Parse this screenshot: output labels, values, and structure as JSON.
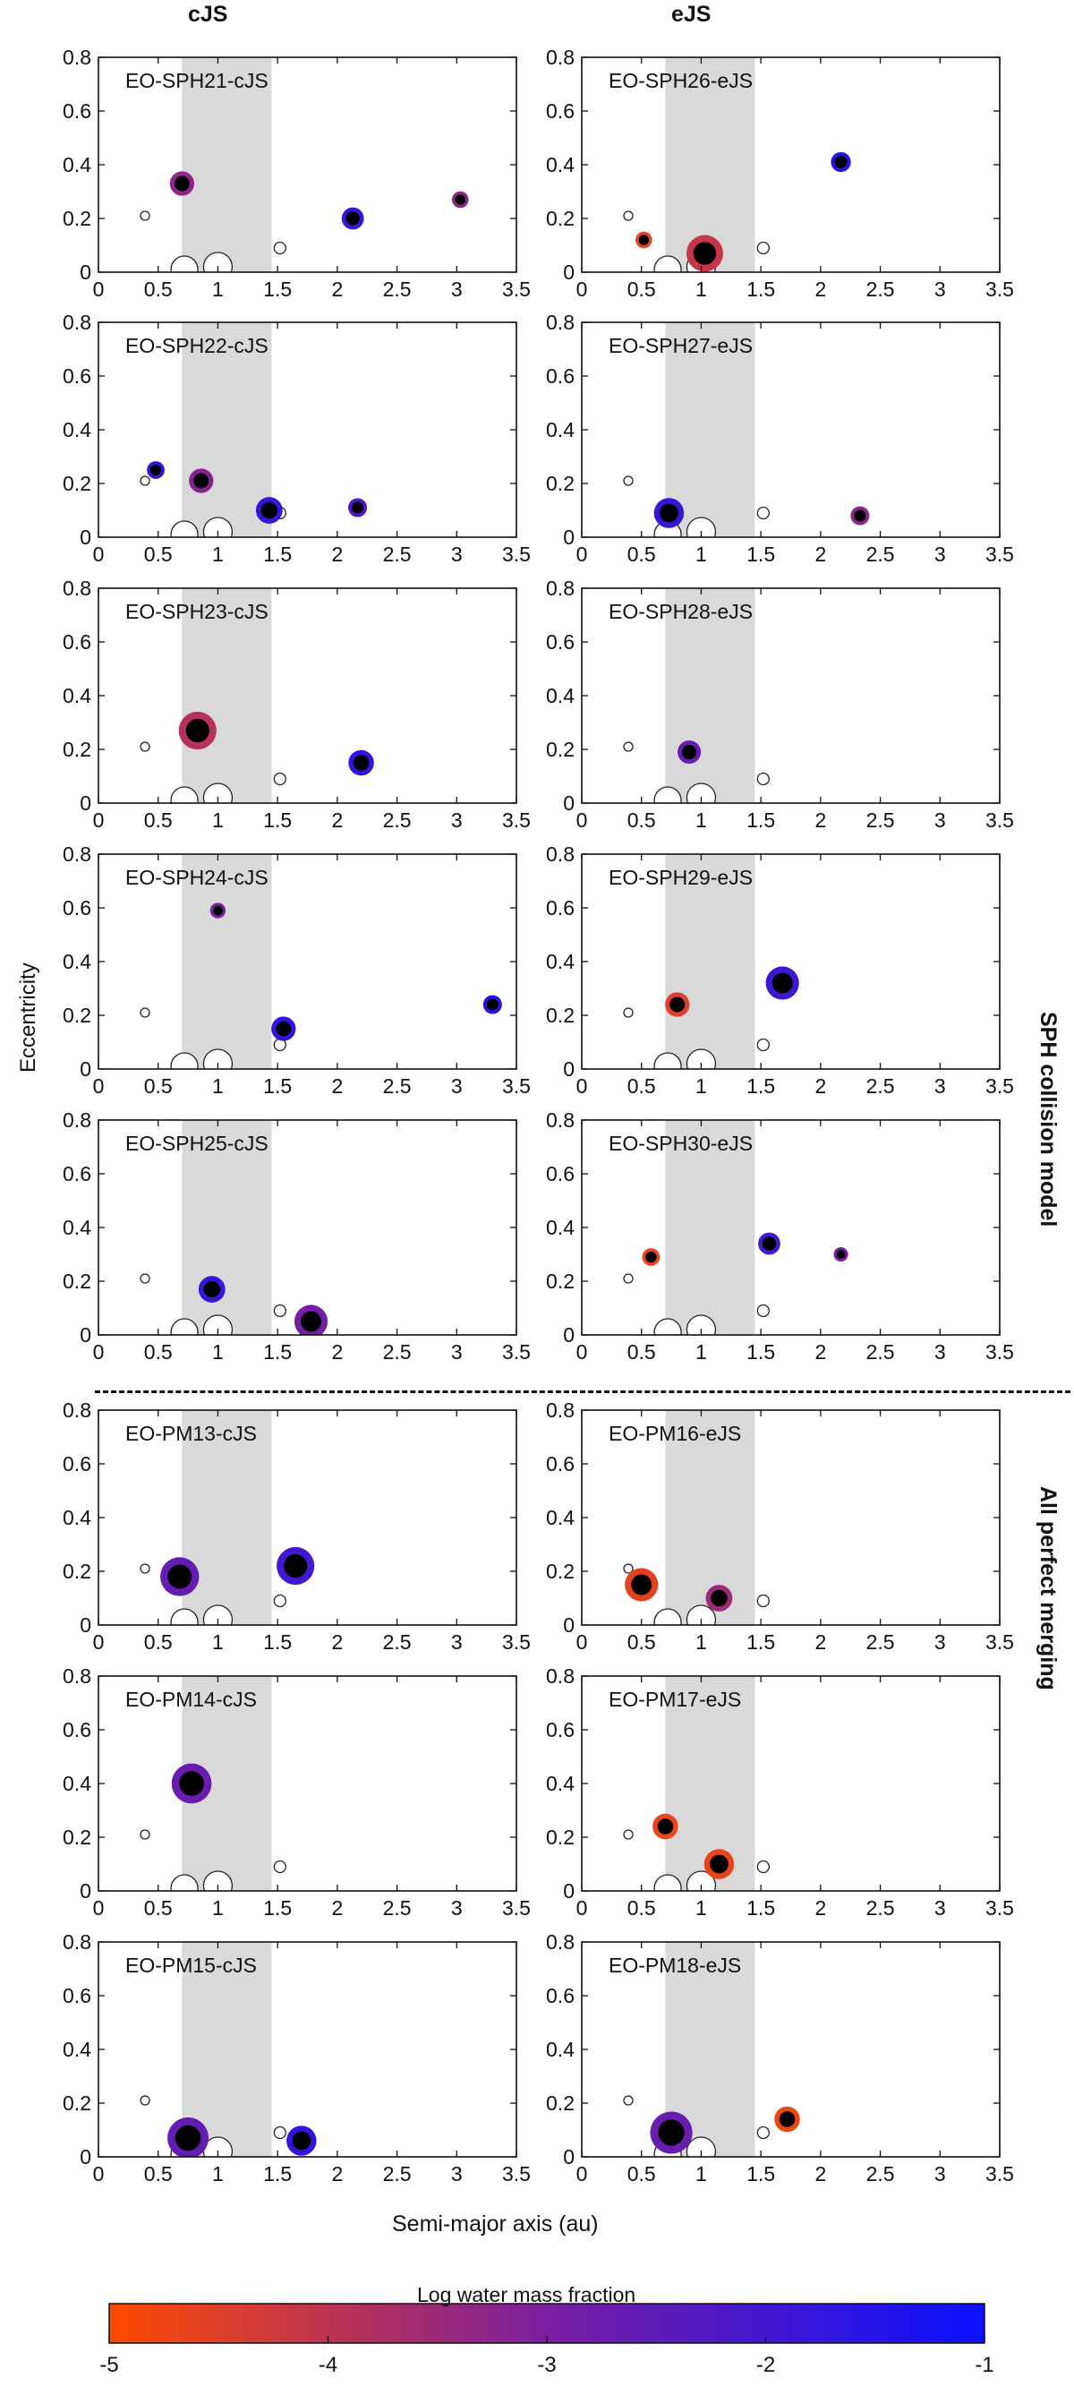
{
  "headers": {
    "left": "cJS",
    "right": "eJS"
  },
  "labels": {
    "y_axis": "Eccentricity",
    "x_axis": "Semi-major axis (au)",
    "group_top": "SPH collision model",
    "group_bottom": "All perfect merging",
    "colorbar_title": "Log water mass fraction"
  },
  "colors": {
    "dry": "#ff4a00",
    "mid": "#7a1fa0",
    "wet": "#0a10ff",
    "core": "#000000",
    "band": "#d9d9d9"
  },
  "colorbar": {
    "min": -5,
    "max": -1,
    "ticks": [
      "-5",
      "-4",
      "-3",
      "-2",
      "-1"
    ]
  },
  "axes": {
    "xlim": [
      0,
      3.5
    ],
    "ylim": [
      0,
      0.8
    ],
    "xticks": [
      "0",
      "0.5",
      "1",
      "1.5",
      "2",
      "2.5",
      "3",
      "3.5"
    ],
    "yticks": [
      "0",
      "0.2",
      "0.4",
      "0.6",
      "0.8"
    ],
    "habitable_zone_au": [
      0.7,
      1.45
    ]
  },
  "reference_planets": [
    {
      "name": "Mercury",
      "a": 0.39,
      "e": 0.21,
      "size": 1
    },
    {
      "name": "Venus",
      "a": 0.72,
      "e": 0.01,
      "size": 3
    },
    {
      "name": "Earth",
      "a": 1.0,
      "e": 0.02,
      "size": 3.2
    },
    {
      "name": "Mars",
      "a": 1.52,
      "e": 0.09,
      "size": 1.3
    }
  ],
  "chart_data": [
    {
      "type": "scatter",
      "title": "EO-SPH21-cJS",
      "col": 0,
      "row": 0,
      "points": [
        {
          "a": 0.7,
          "e": 0.33,
          "size": 2.2,
          "log_water": -3.3
        },
        {
          "a": 2.13,
          "e": 0.2,
          "size": 2.0,
          "log_water": -1.8
        },
        {
          "a": 3.03,
          "e": 0.27,
          "size": 1.5,
          "log_water": -3.3
        }
      ]
    },
    {
      "type": "scatter",
      "title": "EO-SPH26-eJS",
      "col": 1,
      "row": 0,
      "points": [
        {
          "a": 0.52,
          "e": 0.12,
          "size": 1.5,
          "log_water": -4.7
        },
        {
          "a": 1.03,
          "e": 0.07,
          "size": 3.3,
          "log_water": -4.1
        },
        {
          "a": 2.17,
          "e": 0.41,
          "size": 1.8,
          "log_water": -1.5
        }
      ]
    },
    {
      "type": "scatter",
      "title": "EO-SPH22-cJS",
      "col": 0,
      "row": 1,
      "points": [
        {
          "a": 0.48,
          "e": 0.25,
          "size": 1.6,
          "log_water": -1.8
        },
        {
          "a": 0.86,
          "e": 0.21,
          "size": 2.2,
          "log_water": -3.2
        },
        {
          "a": 1.43,
          "e": 0.1,
          "size": 2.4,
          "log_water": -1.8
        },
        {
          "a": 2.17,
          "e": 0.11,
          "size": 1.7,
          "log_water": -2.2
        }
      ]
    },
    {
      "type": "scatter",
      "title": "EO-SPH27-eJS",
      "col": 1,
      "row": 1,
      "points": [
        {
          "a": 0.73,
          "e": 0.09,
          "size": 2.7,
          "log_water": -1.8
        },
        {
          "a": 2.33,
          "e": 0.08,
          "size": 1.7,
          "log_water": -3.3
        }
      ]
    },
    {
      "type": "scatter",
      "title": "EO-SPH23-cJS",
      "col": 0,
      "row": 2,
      "points": [
        {
          "a": 0.83,
          "e": 0.27,
          "size": 3.4,
          "log_water": -3.9
        },
        {
          "a": 2.2,
          "e": 0.15,
          "size": 2.3,
          "log_water": -1.7
        }
      ]
    },
    {
      "type": "scatter",
      "title": "EO-SPH28-eJS",
      "col": 1,
      "row": 2,
      "points": [
        {
          "a": 0.9,
          "e": 0.19,
          "size": 2.1,
          "log_water": -2.6
        }
      ]
    },
    {
      "type": "scatter",
      "title": "EO-SPH24-cJS",
      "col": 0,
      "row": 3,
      "points": [
        {
          "a": 1.0,
          "e": 0.59,
          "size": 1.4,
          "log_water": -3.0
        },
        {
          "a": 1.55,
          "e": 0.15,
          "size": 2.2,
          "log_water": -1.7
        },
        {
          "a": 3.3,
          "e": 0.24,
          "size": 1.7,
          "log_water": -1.5
        }
      ]
    },
    {
      "type": "scatter",
      "title": "EO-SPH29-eJS",
      "col": 1,
      "row": 3,
      "points": [
        {
          "a": 0.8,
          "e": 0.24,
          "size": 2.2,
          "log_water": -4.5
        },
        {
          "a": 1.68,
          "e": 0.32,
          "size": 3.0,
          "log_water": -1.9
        }
      ]
    },
    {
      "type": "scatter",
      "title": "EO-SPH25-cJS",
      "col": 0,
      "row": 4,
      "points": [
        {
          "a": 0.95,
          "e": 0.17,
          "size": 2.4,
          "log_water": -1.8
        },
        {
          "a": 1.78,
          "e": 0.05,
          "size": 3.0,
          "log_water": -2.9
        }
      ]
    },
    {
      "type": "scatter",
      "title": "EO-SPH30-eJS",
      "col": 1,
      "row": 4,
      "points": [
        {
          "a": 0.58,
          "e": 0.29,
          "size": 1.6,
          "log_water": -4.7
        },
        {
          "a": 1.57,
          "e": 0.34,
          "size": 2.0,
          "log_water": -2.0
        },
        {
          "a": 2.17,
          "e": 0.3,
          "size": 1.3,
          "log_water": -3.0
        }
      ]
    },
    {
      "type": "scatter",
      "title": "EO-PM13-cJS",
      "col": 0,
      "row": 5,
      "points": [
        {
          "a": 0.68,
          "e": 0.18,
          "size": 3.5,
          "log_water": -2.6
        },
        {
          "a": 1.65,
          "e": 0.22,
          "size": 3.4,
          "log_water": -2.0
        }
      ]
    },
    {
      "type": "scatter",
      "title": "EO-PM16-eJS",
      "col": 1,
      "row": 5,
      "points": [
        {
          "a": 0.5,
          "e": 0.15,
          "size": 3.0,
          "log_water": -4.6
        },
        {
          "a": 1.15,
          "e": 0.1,
          "size": 2.4,
          "log_water": -3.5
        }
      ]
    },
    {
      "type": "scatter",
      "title": "EO-PM14-cJS",
      "col": 0,
      "row": 6,
      "points": [
        {
          "a": 0.78,
          "e": 0.4,
          "size": 3.6,
          "log_water": -2.7
        }
      ]
    },
    {
      "type": "scatter",
      "title": "EO-PM17-eJS",
      "col": 1,
      "row": 6,
      "points": [
        {
          "a": 0.7,
          "e": 0.24,
          "size": 2.3,
          "log_water": -4.7
        },
        {
          "a": 1.15,
          "e": 0.1,
          "size": 2.7,
          "log_water": -4.7
        }
      ]
    },
    {
      "type": "scatter",
      "title": "EO-PM15-cJS",
      "col": 0,
      "row": 7,
      "points": [
        {
          "a": 0.75,
          "e": 0.07,
          "size": 3.7,
          "log_water": -2.6
        },
        {
          "a": 1.7,
          "e": 0.06,
          "size": 2.7,
          "log_water": -1.7
        }
      ]
    },
    {
      "type": "scatter",
      "title": "EO-PM18-eJS",
      "col": 1,
      "row": 7,
      "points": [
        {
          "a": 0.75,
          "e": 0.09,
          "size": 3.8,
          "log_water": -2.7
        },
        {
          "a": 1.72,
          "e": 0.14,
          "size": 2.3,
          "log_water": -4.7
        }
      ]
    }
  ]
}
